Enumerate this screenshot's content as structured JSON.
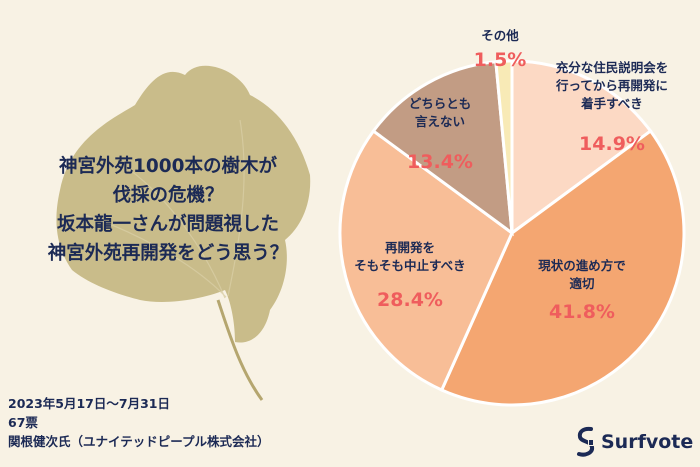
{
  "title": {
    "lines": [
      "神宮外苑1000本の樹木が",
      "伐採の危機？",
      "坂本龍一さんが問題視した",
      "神宮外苑再開発をどう思う？"
    ]
  },
  "footer": {
    "period": "2023年5月17日〜7月31日",
    "votes": "67票",
    "author": "関根健次氏（ユナイテッドピープル株式会社）"
  },
  "logo": {
    "text": "Surfvote"
  },
  "colors": {
    "background": "#f8f2e4",
    "title": "#1c2a55",
    "percent": "#ef5d5d",
    "ginkgo": "#c9bc8a"
  },
  "chart_data": {
    "type": "pie",
    "slices": [
      {
        "label": [
          "充分な住民説明会を",
          "行ってから再開発に",
          "着手すべき"
        ],
        "value": 14.9,
        "value_label": "14.9%",
        "color": "#fcd9c4"
      },
      {
        "label": [
          "現状の進め方で",
          "適切"
        ],
        "value": 41.8,
        "value_label": "41.8%",
        "color": "#f4a671"
      },
      {
        "label": [
          "再開発を",
          "そもそも中止すべき"
        ],
        "value": 28.4,
        "value_label": "28.4%",
        "color": "#f8be97"
      },
      {
        "label": [
          "どちらとも",
          "言えない"
        ],
        "value": 13.4,
        "value_label": "13.4%",
        "color": "#c29c84"
      },
      {
        "label": [
          "その他"
        ],
        "value": 1.5,
        "value_label": "1.5%",
        "color": "#f8eab6"
      }
    ]
  }
}
